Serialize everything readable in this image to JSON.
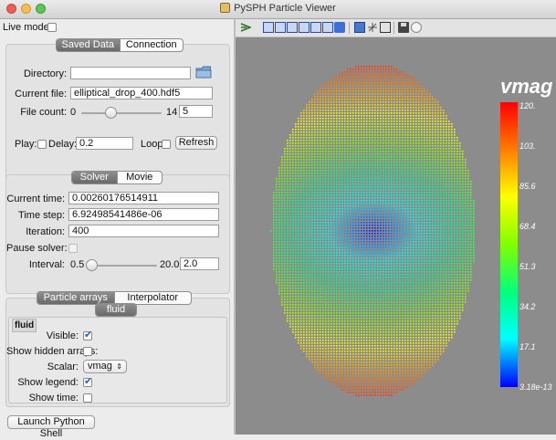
{
  "window": {
    "title": "PySPH Particle Viewer"
  },
  "live_mode": {
    "label": "Live mode:",
    "checked": false
  },
  "data_tabs": {
    "saved": "Saved Data",
    "connection": "Connection"
  },
  "saved_data": {
    "directory_label": "Directory:",
    "directory_value": "",
    "current_file_label": "Current file:",
    "current_file_value": "elliptical_drop_400.hdf5",
    "file_count_label": "File count:",
    "file_count_min": "0",
    "file_count_max": "14",
    "file_count_value": "5",
    "file_count_fraction": 0.36,
    "play_label": "Play:",
    "delay_label": "Delay:",
    "delay_value": "0.2",
    "loop_label": "Loop:",
    "refresh_label": "Refresh"
  },
  "solver_tabs": {
    "solver": "Solver",
    "movie": "Movie"
  },
  "solver": {
    "current_time_label": "Current time:",
    "current_time_value": "0.00260176514911",
    "time_step_label": "Time step:",
    "time_step_value": "6.92498541486e-06",
    "iteration_label": "Iteration:",
    "iteration_value": "400",
    "pause_label": "Pause solver:",
    "interval_label": "Interval:",
    "interval_min": "0.5",
    "interval_max": "20.0",
    "interval_value": "2.0",
    "interval_fraction": 0.08
  },
  "particle_tabs": {
    "arrays": "Particle arrays",
    "interpolator": "Interpolator"
  },
  "particles": {
    "array_tab": "fluid",
    "array_name": "fluid",
    "visible_label": "Visible:",
    "visible": true,
    "show_hidden_label": "Show hidden arrays:",
    "scalar_label": "Scalar:",
    "scalar_value": "vmag",
    "show_legend_label": "Show legend:",
    "show_legend": true,
    "show_time_label": "Show time:",
    "show_time": false
  },
  "launch_shell_label": "Launch Python Shell",
  "toolbar_icons": [
    "pipeline-icon",
    "view-x-icon",
    "view-minus-x-icon",
    "view-y-icon",
    "view-minus-y-icon",
    "view-z-icon",
    "view-minus-z-icon",
    "isometric-icon",
    "parallel-projection-icon",
    "axes-icon",
    "fullscreen-icon",
    "save-icon",
    "scene-config-icon"
  ],
  "legend": {
    "title": "vmag",
    "labels": [
      "120.",
      "103.",
      "85.6",
      "68.4",
      "51.3",
      "34.2",
      "17.1",
      "3.18e-13"
    ]
  },
  "colors": {
    "view_bg": "#8c8c8c",
    "accent": "#1f5fc6"
  }
}
